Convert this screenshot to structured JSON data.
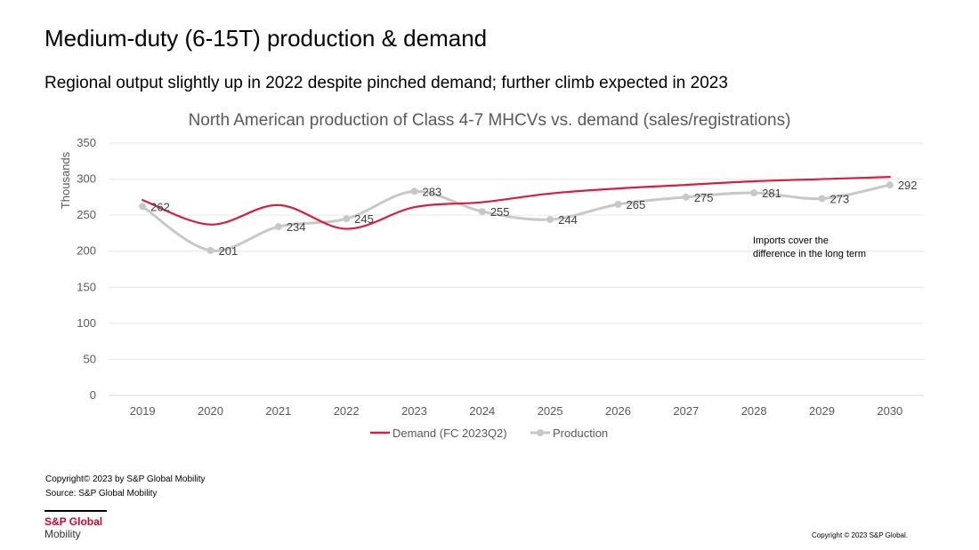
{
  "slide": {
    "title": "Medium-duty (6-15T) production & demand",
    "subtitle": "Regional output slightly up in 2022 despite pinched demand; further climb expected in 2023"
  },
  "chart_data": {
    "type": "line",
    "title": "North American production of Class 4-7 MHCVs vs. demand (sales/registrations)",
    "ylabel": "Thousands",
    "xlabel": "",
    "ylim": [
      0,
      350
    ],
    "yticks": [
      0,
      50,
      100,
      150,
      200,
      250,
      300,
      350
    ],
    "grid": true,
    "legend_position": "bottom",
    "categories": [
      "2019",
      "2020",
      "2021",
      "2022",
      "2023",
      "2024",
      "2025",
      "2026",
      "2027",
      "2028",
      "2029",
      "2030"
    ],
    "series": [
      {
        "name": "Demand (FC 2023Q2)",
        "color": "#d91e3c",
        "values": [
          271,
          237,
          264,
          231,
          261,
          268,
          280,
          287,
          292,
          297,
          300,
          303
        ],
        "markers": false,
        "data_labels": false
      },
      {
        "name": "Production",
        "color": "#c8c8c8",
        "values": [
          262,
          201,
          234,
          245,
          283,
          255,
          244,
          265,
          275,
          281,
          273,
          292
        ],
        "markers": true,
        "data_labels": true
      }
    ],
    "annotation": {
      "line1": "Imports cover the",
      "line2": "difference in the long term"
    }
  },
  "footer": {
    "copyright_line1": "Copyright© 2023 by S&P Global Mobility",
    "source_line": "Source: S&P Global Mobility",
    "logo_brand": "S&P Global",
    "logo_sub": "Mobility",
    "copyright_right": "Copyright © 2023 S&P Global."
  }
}
